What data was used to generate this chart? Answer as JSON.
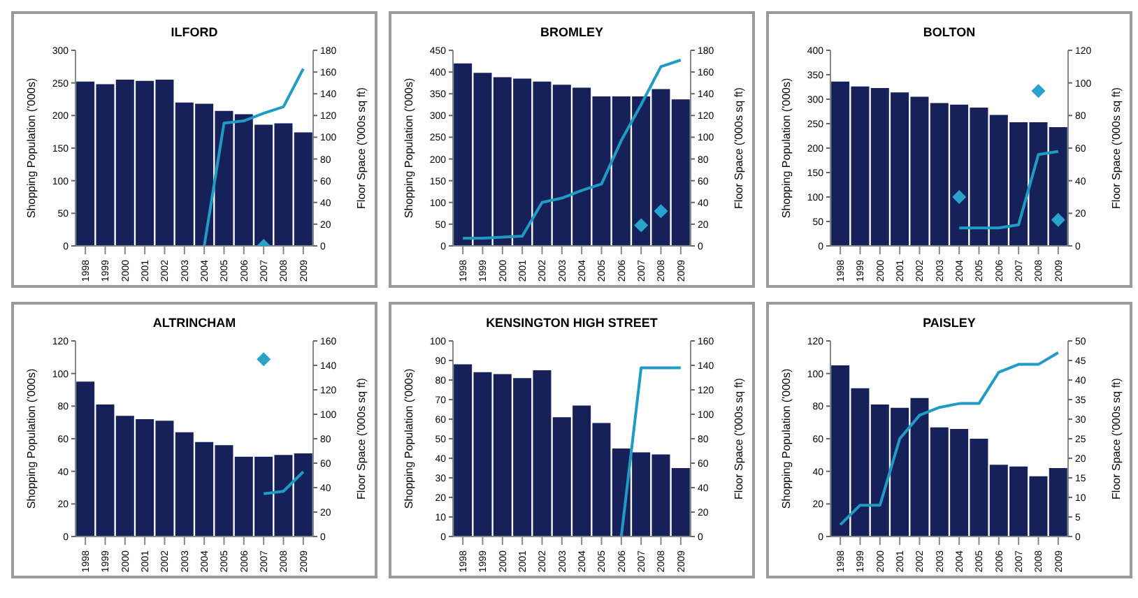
{
  "chart_data": [
    {
      "type": "bar",
      "title": "ILFORD",
      "categories": [
        "1998",
        "1999",
        "2000",
        "2001",
        "2002",
        "2003",
        "2004",
        "2005",
        "2006",
        "2007",
        "2008",
        "2009"
      ],
      "ylabel": "Shopping Population ('000s)",
      "y2label": "Floor Space ('000s sq ft)",
      "ylim": [
        0,
        300
      ],
      "yticks": [
        0,
        50,
        100,
        150,
        200,
        250,
        300
      ],
      "y2lim": [
        0,
        180
      ],
      "y2ticks": [
        0,
        20,
        40,
        60,
        80,
        100,
        120,
        140,
        160,
        180
      ],
      "series": [
        {
          "color": "#16215a",
          "values": [
            252,
            248,
            255,
            253,
            255,
            220,
            218,
            207,
            202,
            186,
            188,
            174
          ]
        },
        {
          "type": "line",
          "axis": "y2",
          "color": "#1f9bc4",
          "values": [
            null,
            null,
            null,
            null,
            null,
            null,
            0,
            113,
            115,
            122,
            128,
            163
          ]
        },
        {
          "type": "scatter",
          "axis": "y2",
          "marker": "diamond",
          "color": "#2aa3cc",
          "values": [
            null,
            null,
            null,
            null,
            null,
            null,
            null,
            null,
            null,
            0,
            null,
            null
          ]
        }
      ]
    },
    {
      "type": "bar",
      "title": "BROMLEY",
      "categories": [
        "1998",
        "1999",
        "2000",
        "2001",
        "2002",
        "2003",
        "2004",
        "2005",
        "2006",
        "2007",
        "2008",
        "2009"
      ],
      "ylabel": "Shopping Population ('000s)",
      "y2label": "Floor Space ('000s sq ft)",
      "ylim": [
        0,
        450
      ],
      "yticks": [
        0,
        50,
        100,
        150,
        200,
        250,
        300,
        350,
        400,
        450
      ],
      "y2lim": [
        0,
        180
      ],
      "y2ticks": [
        0,
        20,
        40,
        60,
        80,
        100,
        120,
        140,
        160,
        180
      ],
      "series": [
        {
          "color": "#16215a",
          "values": [
            420,
            398,
            388,
            385,
            378,
            371,
            364,
            344,
            344,
            344,
            361,
            337
          ]
        },
        {
          "type": "line",
          "axis": "y2",
          "color": "#1f9bc4",
          "values": [
            7,
            7,
            8,
            9,
            40,
            44,
            51,
            57,
            97,
            130,
            165,
            171
          ]
        },
        {
          "type": "scatter",
          "axis": "y2",
          "marker": "diamond",
          "color": "#2aa3cc",
          "values": [
            null,
            null,
            null,
            null,
            null,
            null,
            null,
            null,
            null,
            19,
            32,
            null
          ]
        }
      ]
    },
    {
      "type": "bar",
      "title": "BOLTON",
      "categories": [
        "1998",
        "1999",
        "2000",
        "2001",
        "2002",
        "2003",
        "2004",
        "2005",
        "2006",
        "2007",
        "2008",
        "2009"
      ],
      "ylabel": "Shopping Population ('000s)",
      "y2label": "Floor Space ('000s sq ft)",
      "ylim": [
        0,
        400
      ],
      "yticks": [
        0,
        50,
        100,
        150,
        200,
        250,
        300,
        350,
        400
      ],
      "y2lim": [
        0,
        120
      ],
      "y2ticks": [
        0,
        20,
        40,
        60,
        80,
        100,
        120
      ],
      "series": [
        {
          "color": "#16215a",
          "values": [
            336,
            326,
            323,
            314,
            305,
            292,
            289,
            283,
            268,
            253,
            253,
            243
          ]
        },
        {
          "type": "line",
          "axis": "y2",
          "color": "#1f9bc4",
          "values": [
            null,
            null,
            null,
            null,
            null,
            null,
            11,
            11,
            11,
            13,
            56,
            58
          ]
        },
        {
          "type": "scatter",
          "axis": "y2",
          "marker": "diamond",
          "color": "#2aa3cc",
          "values": [
            null,
            null,
            null,
            null,
            null,
            null,
            30,
            null,
            null,
            null,
            95,
            16
          ]
        }
      ]
    },
    {
      "type": "bar",
      "title": "ALTRINCHAM",
      "categories": [
        "1998",
        "1999",
        "2000",
        "2001",
        "2002",
        "2003",
        "2004",
        "2005",
        "2006",
        "2007",
        "2008",
        "2009"
      ],
      "ylabel": "Shopping Population ('000s)",
      "y2label": "Floor Space ('000s sq ft)",
      "ylim": [
        0,
        120
      ],
      "yticks": [
        0,
        20,
        40,
        60,
        80,
        100,
        120
      ],
      "y2lim": [
        0,
        160
      ],
      "y2ticks": [
        0,
        20,
        40,
        60,
        80,
        100,
        120,
        140,
        160
      ],
      "series": [
        {
          "color": "#16215a",
          "values": [
            95,
            81,
            74,
            72,
            71,
            64,
            58,
            56,
            49,
            49,
            50,
            51
          ]
        },
        {
          "type": "line",
          "axis": "y2",
          "color": "#1f9bc4",
          "values": [
            null,
            null,
            null,
            null,
            null,
            null,
            null,
            null,
            null,
            35,
            37,
            53
          ]
        },
        {
          "type": "scatter",
          "axis": "y2",
          "marker": "diamond",
          "color": "#2aa3cc",
          "values": [
            null,
            null,
            null,
            null,
            null,
            null,
            null,
            null,
            null,
            145,
            null,
            null
          ]
        }
      ]
    },
    {
      "type": "bar",
      "title": "KENSINGTON HIGH STREET",
      "categories": [
        "1998",
        "1999",
        "2000",
        "2001",
        "2002",
        "2003",
        "2004",
        "2005",
        "2006",
        "2007",
        "2008",
        "2009"
      ],
      "ylabel": "Shopping Population ('000s)",
      "y2label": "Floor Space ('000s sq ft)",
      "ylim": [
        0,
        100
      ],
      "yticks": [
        0,
        10,
        20,
        30,
        40,
        50,
        60,
        70,
        80,
        90,
        100
      ],
      "y2lim": [
        0,
        160
      ],
      "y2ticks": [
        0,
        20,
        40,
        60,
        80,
        100,
        120,
        140,
        160
      ],
      "series": [
        {
          "color": "#16215a",
          "values": [
            88,
            84,
            83,
            81,
            85,
            61,
            67,
            58,
            45,
            43,
            42,
            35
          ]
        },
        {
          "type": "line",
          "axis": "y2",
          "color": "#1f9bc4",
          "values": [
            null,
            null,
            null,
            null,
            null,
            null,
            null,
            null,
            0,
            138,
            138,
            138
          ]
        }
      ]
    },
    {
      "type": "bar",
      "title": "PAISLEY",
      "categories": [
        "1998",
        "1999",
        "2000",
        "2001",
        "2002",
        "2003",
        "2004",
        "2005",
        "2006",
        "2007",
        "2008",
        "2009"
      ],
      "ylabel": "Shopping Population ('000s)",
      "y2label": "Floor Space ('000s sq ft)",
      "ylim": [
        0,
        120
      ],
      "yticks": [
        0,
        20,
        40,
        60,
        80,
        100,
        120
      ],
      "y2lim": [
        0,
        50
      ],
      "y2ticks": [
        0,
        5,
        10,
        15,
        20,
        25,
        30,
        35,
        40,
        45,
        50
      ],
      "series": [
        {
          "color": "#16215a",
          "values": [
            105,
            91,
            81,
            79,
            85,
            67,
            66,
            60,
            44,
            43,
            37,
            42
          ]
        },
        {
          "type": "line",
          "axis": "y2",
          "color": "#1f9bc4",
          "values": [
            3,
            8,
            8,
            25,
            31,
            33,
            34,
            34,
            42,
            44,
            44,
            47
          ]
        }
      ]
    }
  ]
}
